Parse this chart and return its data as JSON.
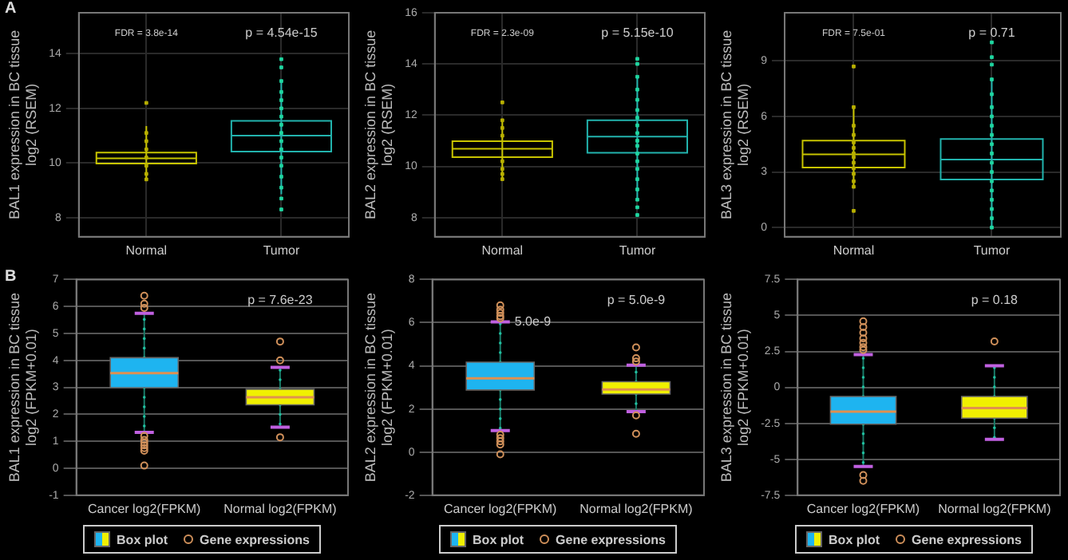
{
  "chart_data": [
    {
      "type": "box",
      "ylabel": "BAL1 expression in BC tissue\nlog2 (RSEM)",
      "categories": [
        "Normal",
        "Tumor"
      ],
      "ylim": [
        7.3,
        15.5
      ],
      "yticks": [
        8,
        10,
        12,
        14
      ],
      "grid": true,
      "title": "A",
      "annotations": [
        "FDR = 3.8e-14",
        "p = 4.54e-15"
      ],
      "series": [
        {
          "type": "box",
          "colors": [
            "#c8c400",
            "#22b3ad"
          ],
          "boxes": [
            {
              "low": 9.37,
              "q1": 9.98,
              "median": 10.17,
              "q3": 10.38,
              "high": 11.35
            },
            {
              "low": 8.86,
              "q1": 10.42,
              "median": 11.0,
              "q3": 11.54,
              "high": 13.0
            }
          ]
        },
        {
          "type": "scatter",
          "marker": "square",
          "color": "#b8b000",
          "x": [
            "Normal",
            "Normal",
            "Normal",
            "Normal",
            "Normal",
            "Normal",
            "Normal",
            "Normal"
          ],
          "values": [
            12.2,
            11.1,
            10.8,
            10.5,
            10.2,
            9.9,
            9.6,
            9.4
          ]
        },
        {
          "type": "scatter",
          "marker": "square",
          "color": "#1fd6a0",
          "x": [
            "Tumor",
            "Tumor",
            "Tumor",
            "Tumor",
            "Tumor",
            "Tumor",
            "Tumor",
            "Tumor",
            "Tumor",
            "Tumor",
            "Tumor",
            "Tumor",
            "Tumor",
            "Tumor",
            "Tumor",
            "Tumor",
            "Tumor"
          ],
          "values": [
            13.8,
            13.5,
            13.0,
            12.6,
            12.3,
            12.0,
            11.7,
            11.4,
            11.1,
            10.8,
            10.5,
            10.2,
            9.9,
            9.5,
            9.1,
            8.7,
            8.3
          ]
        }
      ]
    },
    {
      "type": "box",
      "ylabel": "BAL2 expression in BC tissue\nlog2 (RSEM)",
      "categories": [
        "Normal",
        "Tumor"
      ],
      "ylim": [
        7.25,
        16
      ],
      "yticks": [
        8,
        10,
        12,
        14,
        16
      ],
      "grid": true,
      "annotations": [
        "FDR = 2.3e-09",
        "p = 5.15e-10"
      ],
      "series": [
        {
          "type": "box",
          "colors": [
            "#c8c400",
            "#22b3ad"
          ],
          "boxes": [
            {
              "low": 9.47,
              "q1": 10.36,
              "median": 10.69,
              "q3": 10.98,
              "high": 11.78
            },
            {
              "low": 8.67,
              "q1": 10.53,
              "median": 11.16,
              "q3": 11.8,
              "high": 13.5
            }
          ]
        },
        {
          "type": "scatter",
          "marker": "square",
          "color": "#b8b000",
          "x": [
            "Normal",
            "Normal",
            "Normal",
            "Normal",
            "Normal",
            "Normal",
            "Normal",
            "Normal"
          ],
          "values": [
            12.5,
            11.8,
            11.5,
            11.2,
            10.2,
            9.9,
            9.7,
            9.5
          ]
        },
        {
          "type": "scatter",
          "marker": "square",
          "color": "#1fd6a0",
          "x": [
            "Tumor",
            "Tumor",
            "Tumor",
            "Tumor",
            "Tumor",
            "Tumor",
            "Tumor",
            "Tumor",
            "Tumor",
            "Tumor",
            "Tumor",
            "Tumor",
            "Tumor",
            "Tumor",
            "Tumor",
            "Tumor",
            "Tumor",
            "Tumor",
            "Tumor"
          ],
          "values": [
            14.2,
            14.0,
            13.5,
            13.0,
            12.6,
            12.2,
            11.9,
            11.6,
            11.3,
            11.0,
            10.8,
            10.5,
            10.2,
            9.9,
            9.5,
            9.1,
            8.7,
            8.4,
            8.1
          ]
        }
      ]
    },
    {
      "type": "box",
      "ylabel": "BAL3 expression in BC tissue\nlog2 (RSEM)",
      "categories": [
        "Normal",
        "Tumor"
      ],
      "ylim": [
        -0.5,
        11.6
      ],
      "yticks": [
        0,
        3,
        6,
        9
      ],
      "grid": true,
      "annotations": [
        "FDR = 7.5e-01",
        "p = 0.71"
      ],
      "series": [
        {
          "type": "box",
          "colors": [
            "#c8c400",
            "#22b3ad"
          ],
          "boxes": [
            {
              "low": 2.16,
              "q1": 3.24,
              "median": 3.95,
              "q3": 4.69,
              "high": 6.54
            },
            {
              "low": 0,
              "q1": 2.59,
              "median": 3.67,
              "q3": 4.78,
              "high": 7.96
            }
          ]
        },
        {
          "type": "scatter",
          "marker": "square",
          "color": "#b8b000",
          "x": [
            "Normal",
            "Normal",
            "Normal",
            "Normal",
            "Normal",
            "Normal",
            "Normal",
            "Normal",
            "Normal",
            "Normal",
            "Normal",
            "Normal",
            "Normal",
            "Normal"
          ],
          "values": [
            8.7,
            6.5,
            5.5,
            5.0,
            4.6,
            4.3,
            4.0,
            3.8,
            3.5,
            3.2,
            2.9,
            2.5,
            2.2,
            0.9
          ]
        },
        {
          "type": "scatter",
          "marker": "square",
          "color": "#1fd6a0",
          "x": [
            "Tumor",
            "Tumor",
            "Tumor",
            "Tumor",
            "Tumor",
            "Tumor",
            "Tumor",
            "Tumor",
            "Tumor",
            "Tumor",
            "Tumor",
            "Tumor",
            "Tumor",
            "Tumor",
            "Tumor",
            "Tumor",
            "Tumor",
            "Tumor",
            "Tumor"
          ],
          "values": [
            10.0,
            9.2,
            8.8,
            8.0,
            7.2,
            6.5,
            6.0,
            5.5,
            5.0,
            4.5,
            4.0,
            3.5,
            3.0,
            2.5,
            2.0,
            1.5,
            1.0,
            0.5,
            0.0
          ]
        }
      ]
    },
    {
      "type": "box",
      "ylabel": "BAL1 expression in BC tissue\nlog2 (FPKM+0.01)",
      "categories": [
        "Cancer log2(FPKM)",
        "Normal log2(FPKM)"
      ],
      "ylim": [
        -1,
        7
      ],
      "yticks": [
        -1,
        0,
        1,
        2,
        3,
        4,
        5,
        6,
        7
      ],
      "grid": "y",
      "legend": "bottom",
      "title": "B",
      "annotations": [
        "p = 7.6e-23"
      ],
      "series": [
        {
          "type": "box",
          "name": "Box plot",
          "line_style": "dotted",
          "colors": [
            "#1eb4f0",
            "#f0f000"
          ],
          "boxes": [
            {
              "low": 1.33,
              "q1": 2.99,
              "median": 3.53,
              "q3": 4.1,
              "high": 5.75
            },
            {
              "low": 1.52,
              "q1": 2.35,
              "median": 2.63,
              "q3": 2.93,
              "high": 3.74
            }
          ]
        },
        {
          "type": "scatter",
          "name": "Gene expressions",
          "marker": "circle",
          "color": "#d0905a",
          "x": [
            "Cancer log2(FPKM)",
            "Cancer log2(FPKM)",
            "Cancer log2(FPKM)",
            "Cancer log2(FPKM)",
            "Cancer log2(FPKM)",
            "Cancer log2(FPKM)",
            "Cancer log2(FPKM)",
            "Cancer log2(FPKM)",
            "Cancer log2(FPKM)",
            "Cancer log2(FPKM)",
            "Normal log2(FPKM)",
            "Normal log2(FPKM)",
            "Normal log2(FPKM)"
          ],
          "values": [
            6.4,
            6.1,
            5.95,
            1.2,
            1.05,
            0.95,
            0.85,
            0.75,
            0.65,
            0.1,
            4.7,
            4.0,
            1.15
          ]
        }
      ]
    },
    {
      "type": "box",
      "ylabel": "BAL2 expression in BC tissue\nlog2 (FPKM+0.01)",
      "categories": [
        "Cancer log2(FPKM)",
        "Normal log2(FPKM)"
      ],
      "ylim": [
        -2,
        8
      ],
      "yticks": [
        -2,
        0,
        2,
        4,
        6,
        8
      ],
      "grid": "y",
      "legend": "bottom",
      "annotations": [
        "p = 5.0e-9",
        {
          "text": "5.0e-9",
          "x": "Cancer log2(FPKM)",
          "y": 6.04
        }
      ],
      "series": [
        {
          "type": "box",
          "name": "Box plot",
          "line_style": "dotted",
          "colors": [
            "#1eb4f0",
            "#f0f000"
          ],
          "boxes": [
            {
              "low": 1.0,
              "q1": 2.88,
              "median": 3.42,
              "q3": 4.17,
              "high": 6.04
            },
            {
              "low": 1.88,
              "q1": 2.69,
              "median": 2.9,
              "q3": 3.26,
              "high": 4.03
            }
          ]
        },
        {
          "type": "scatter",
          "name": "Gene expressions",
          "marker": "circle",
          "color": "#d0905a",
          "x": [
            "Cancer log2(FPKM)",
            "Cancer log2(FPKM)",
            "Cancer log2(FPKM)",
            "Cancer log2(FPKM)",
            "Cancer log2(FPKM)",
            "Cancer log2(FPKM)",
            "Cancer log2(FPKM)",
            "Cancer log2(FPKM)",
            "Cancer log2(FPKM)",
            "Cancer log2(FPKM)",
            "Normal log2(FPKM)",
            "Normal log2(FPKM)",
            "Normal log2(FPKM)",
            "Normal log2(FPKM)",
            "Normal log2(FPKM)"
          ],
          "values": [
            6.8,
            6.6,
            6.45,
            6.3,
            6.2,
            0.8,
            0.65,
            0.5,
            0.35,
            -0.1,
            4.85,
            4.35,
            4.2,
            1.7,
            0.85
          ]
        }
      ]
    },
    {
      "type": "box",
      "ylabel": "BAL3 expression in BC tissue\nlog2 (FPKM+0.01)",
      "categories": [
        "Cancer log2(FPKM)",
        "Normal log2(FPKM)"
      ],
      "ylim": [
        -7.5,
        7.5
      ],
      "yticks": [
        -7.5,
        -5,
        -2.5,
        0,
        2.5,
        5,
        7.5
      ],
      "grid": "y",
      "legend": "bottom",
      "annotations": [
        "p = 0.18"
      ],
      "series": [
        {
          "type": "box",
          "name": "Box plot",
          "line_style": "dotted",
          "colors": [
            "#1eb4f0",
            "#f0f000"
          ],
          "boxes": [
            {
              "low": -5.5,
              "q1": -2.56,
              "median": -1.68,
              "q3": -0.63,
              "high": 2.28
            },
            {
              "low": -3.61,
              "q1": -2.14,
              "median": -1.44,
              "q3": -0.63,
              "high": 1.51
            }
          ]
        },
        {
          "type": "scatter",
          "name": "Gene expressions",
          "marker": "circle",
          "color": "#d0905a",
          "x": [
            "Cancer log2(FPKM)",
            "Cancer log2(FPKM)",
            "Cancer log2(FPKM)",
            "Cancer log2(FPKM)",
            "Cancer log2(FPKM)",
            "Cancer log2(FPKM)",
            "Cancer log2(FPKM)",
            "Cancer log2(FPKM)",
            "Cancer log2(FPKM)",
            "Normal log2(FPKM)"
          ],
          "values": [
            4.6,
            4.2,
            3.8,
            3.4,
            3.1,
            2.8,
            2.6,
            -6.1,
            -6.5,
            3.2
          ]
        }
      ]
    }
  ]
}
